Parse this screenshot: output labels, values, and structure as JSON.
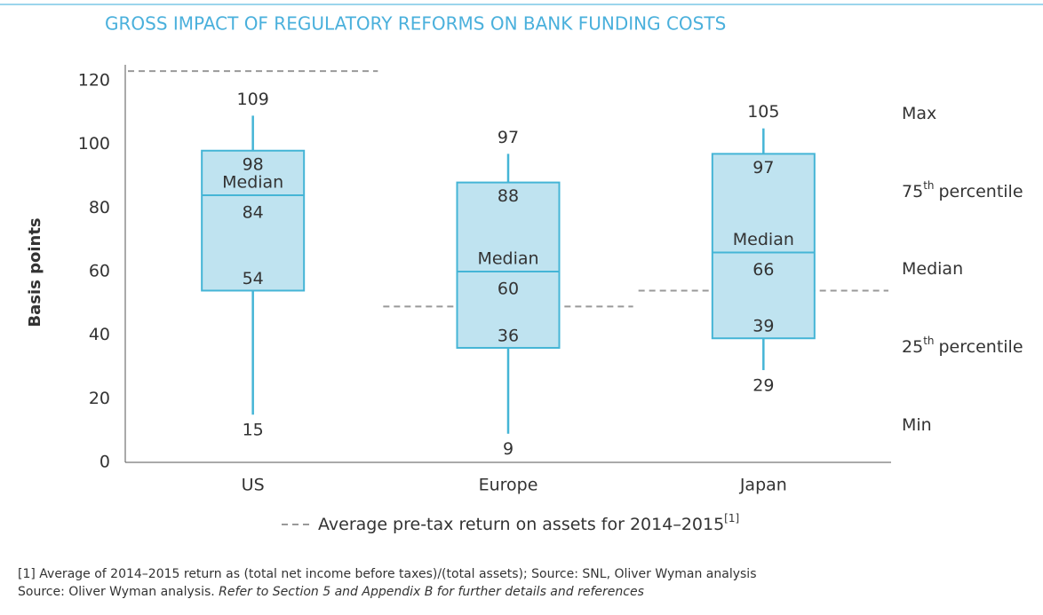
{
  "chart_data": {
    "type": "box",
    "title": "GROSS IMPACT OF REGULATORY REFORMS ON BANK FUNDING COSTS",
    "y_label": "Basis points",
    "categories": [
      "US",
      "Europe",
      "Japan"
    ],
    "boxes": [
      {
        "max": 109,
        "q3": 98,
        "median": 84,
        "q1": 54,
        "min": 15
      },
      {
        "max": 97,
        "q3": 88,
        "median": 60,
        "q1": 36,
        "min": 9
      },
      {
        "max": 105,
        "q3": 97,
        "median": 66,
        "q1": 39,
        "min": 29
      }
    ],
    "median_label": "Median",
    "box_color": "#bfe3f0",
    "edge_color": "#45b5d6",
    "average_line": {
      "name": "Average pre-tax return on assets for 2014–2015",
      "footnote_ref": "[1]",
      "color": "#999999",
      "values": [
        123,
        49,
        54
      ]
    },
    "key_labels": [
      {
        "base": "Max"
      },
      {
        "base": "75",
        "sup": "th",
        "rest": "percentile"
      },
      {
        "base": "Median"
      },
      {
        "base": "25",
        "sup": "th",
        "rest": "percentile"
      },
      {
        "base": "Min"
      }
    ],
    "ylim": [
      0,
      125
    ],
    "yticks": [
      0,
      20,
      40,
      60,
      80,
      100,
      120
    ],
    "grid": false
  },
  "footnotes": {
    "line1": "[1] Average of 2014–2015 return as (total net income before taxes)/(total assets); Source: SNL, Oliver Wyman analysis",
    "line2_plain": "Source: Oliver Wyman analysis. ",
    "line2_italic": "Refer to Section 5 and Appendix B for further details and references"
  }
}
